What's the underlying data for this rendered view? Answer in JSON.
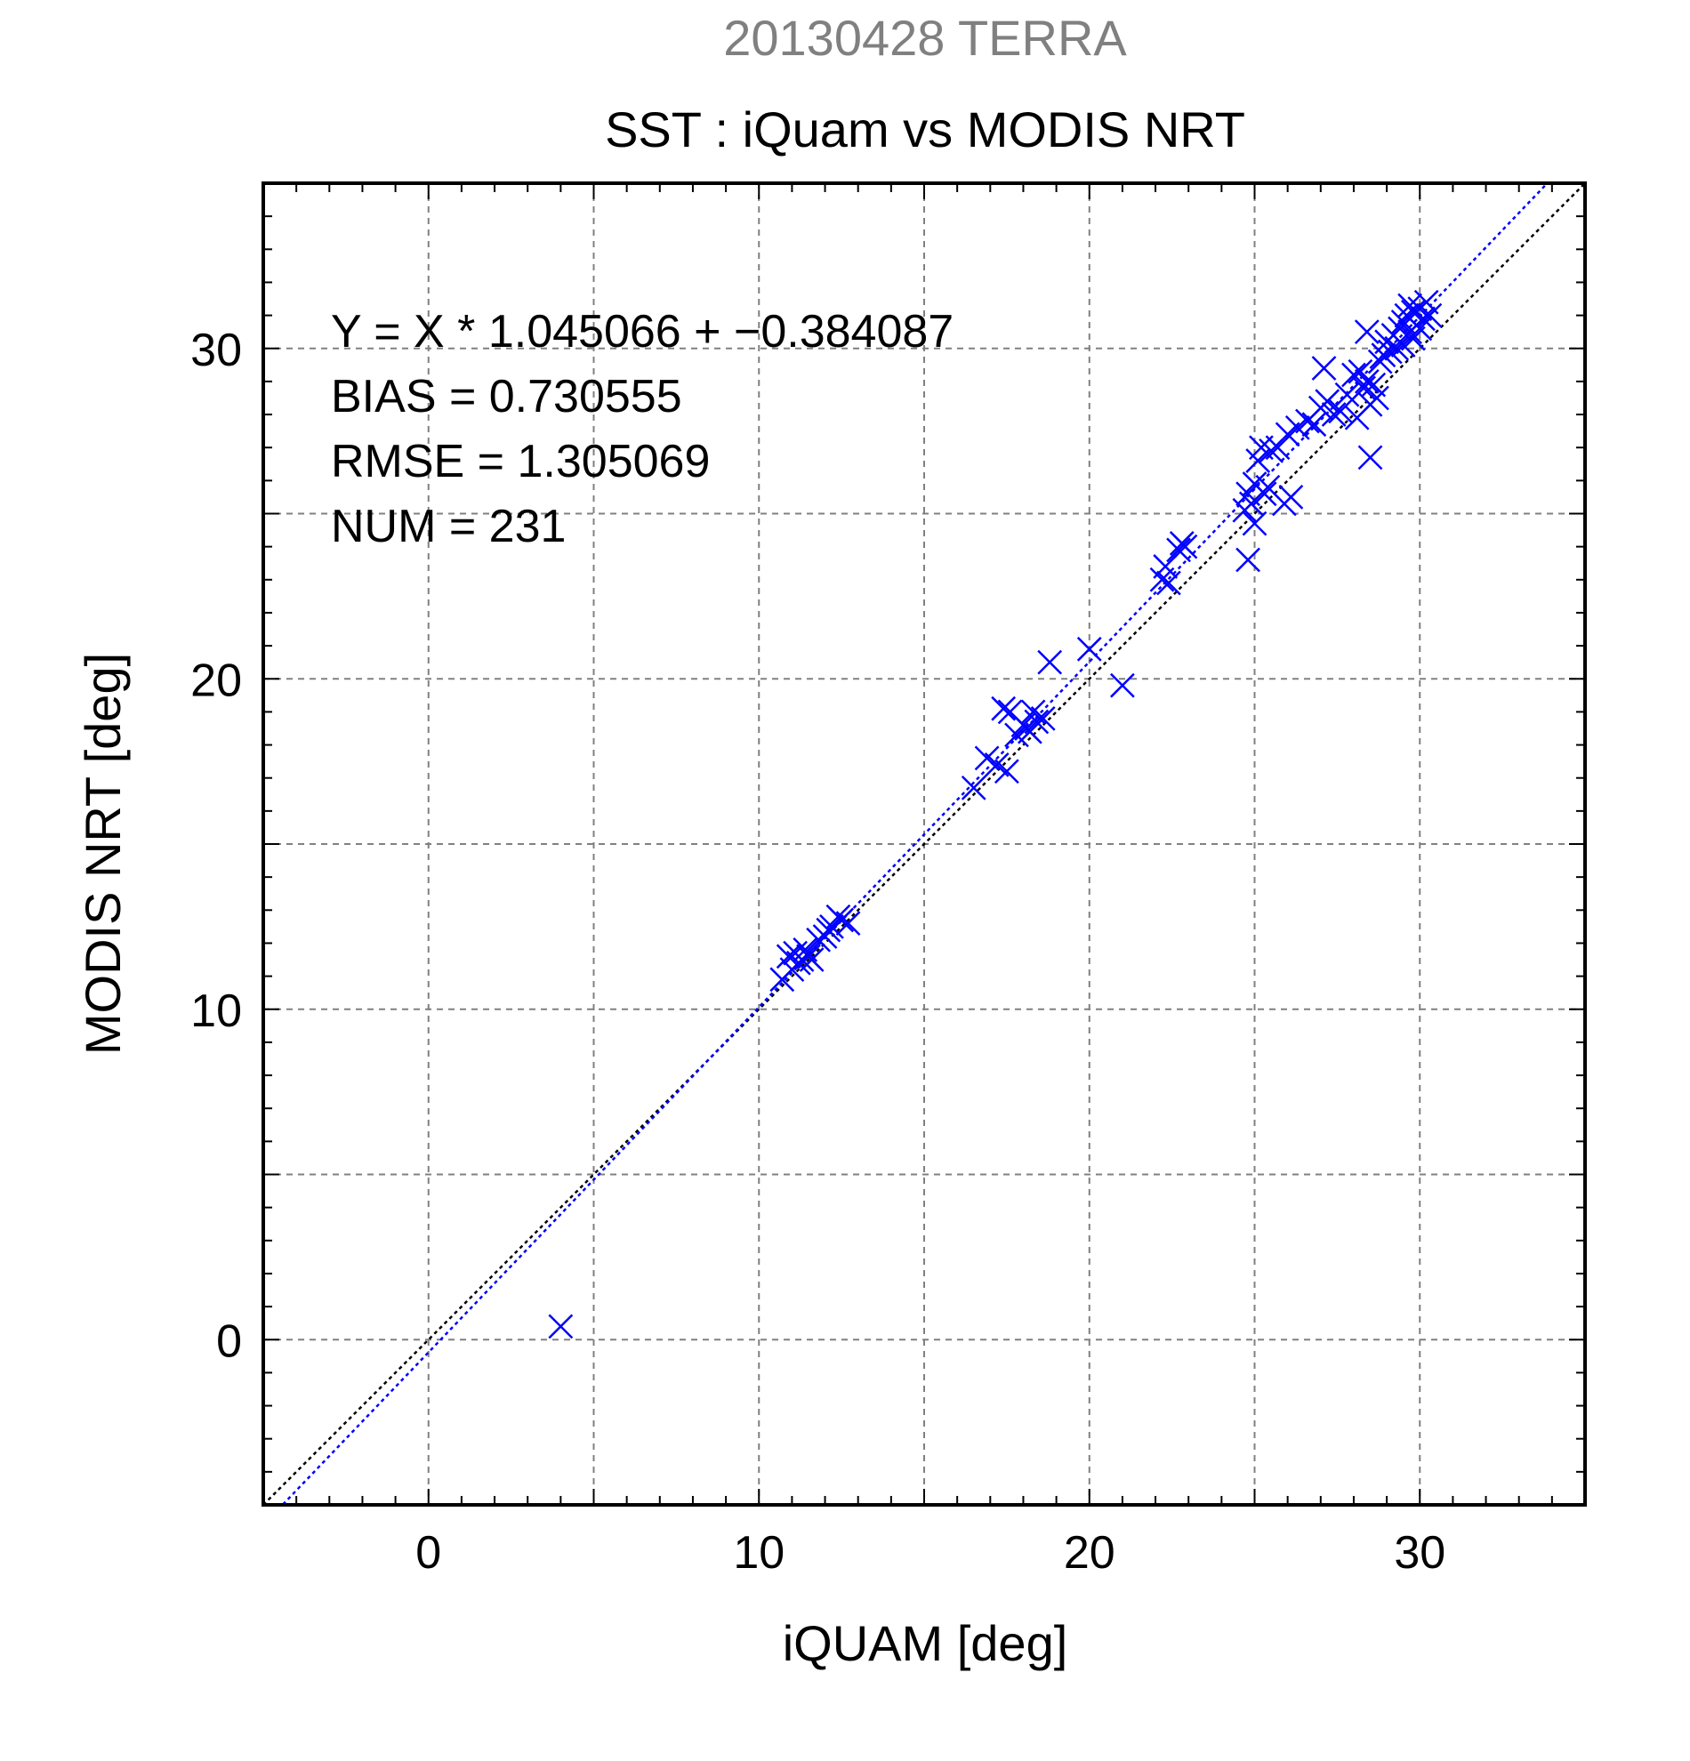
{
  "chart_data": {
    "type": "scatter",
    "title": "20130428 TERRA",
    "subtitle": "SST : iQuam vs MODIS NRT",
    "xlabel": "iQUAM [deg]",
    "ylabel": "MODIS NRT [deg]",
    "xlim": [
      -5,
      35
    ],
    "ylim": [
      -5,
      35
    ],
    "xticks": [
      0,
      10,
      20,
      30
    ],
    "yticks": [
      0,
      10,
      20,
      30
    ],
    "tick_labels": {
      "x": [
        "0",
        "10",
        "20",
        "30"
      ],
      "y": [
        "0",
        "10",
        "20",
        "30"
      ]
    },
    "grid": true,
    "annotations": [
      "Y = X * 1.045066 + −0.384087",
      "BIAS = 0.730555",
      "RMSE = 1.305069",
      "NUM = 231"
    ],
    "regression": {
      "slope": 1.045066,
      "intercept": -0.384087
    },
    "colors": {
      "points": "#0000ff",
      "fit_line": "#0000ff",
      "identity_line": "#000000",
      "title": "#808080",
      "grid": "#808080"
    },
    "points": [
      [
        4.0,
        0.4
      ],
      [
        10.7,
        10.9
      ],
      [
        10.9,
        11.6
      ],
      [
        11.0,
        11.2
      ],
      [
        11.1,
        11.7
      ],
      [
        11.2,
        11.4
      ],
      [
        11.3,
        11.5
      ],
      [
        11.4,
        11.8
      ],
      [
        11.5,
        11.6
      ],
      [
        11.6,
        11.5
      ],
      [
        11.8,
        12.1
      ],
      [
        12.0,
        12.2
      ],
      [
        12.1,
        12.4
      ],
      [
        12.2,
        12.5
      ],
      [
        12.4,
        12.8
      ],
      [
        12.5,
        12.7
      ],
      [
        12.7,
        12.6
      ],
      [
        16.5,
        16.7
      ],
      [
        16.9,
        17.6
      ],
      [
        17.2,
        17.4
      ],
      [
        17.4,
        19.1
      ],
      [
        17.5,
        17.2
      ],
      [
        17.6,
        19.0
      ],
      [
        17.8,
        18.3
      ],
      [
        18.0,
        18.6
      ],
      [
        18.1,
        18.5
      ],
      [
        18.2,
        18.4
      ],
      [
        18.3,
        19.0
      ],
      [
        18.4,
        18.7
      ],
      [
        18.6,
        18.8
      ],
      [
        18.8,
        20.5
      ],
      [
        20.0,
        20.9
      ],
      [
        21.0,
        19.8
      ],
      [
        22.2,
        23.0
      ],
      [
        22.3,
        23.4
      ],
      [
        22.4,
        22.9
      ],
      [
        22.7,
        23.9
      ],
      [
        22.8,
        24.1
      ],
      [
        22.9,
        24.0
      ],
      [
        24.7,
        25.1
      ],
      [
        24.8,
        25.6
      ],
      [
        24.8,
        23.6
      ],
      [
        24.9,
        25.3
      ],
      [
        25.0,
        25.9
      ],
      [
        25.0,
        24.7
      ],
      [
        25.1,
        26.6
      ],
      [
        25.2,
        27.0
      ],
      [
        25.3,
        25.6
      ],
      [
        25.4,
        25.8
      ],
      [
        25.5,
        26.9
      ],
      [
        25.7,
        27.0
      ],
      [
        25.9,
        25.3
      ],
      [
        26.0,
        27.4
      ],
      [
        26.1,
        25.5
      ],
      [
        26.3,
        27.6
      ],
      [
        26.6,
        27.8
      ],
      [
        26.8,
        27.7
      ],
      [
        27.0,
        28.2
      ],
      [
        27.2,
        28.4
      ],
      [
        27.4,
        28.0
      ],
      [
        27.1,
        29.4
      ],
      [
        27.6,
        28.1
      ],
      [
        27.8,
        28.6
      ],
      [
        28.0,
        29.2
      ],
      [
        28.1,
        27.9
      ],
      [
        28.2,
        29.3
      ],
      [
        28.3,
        28.8
      ],
      [
        28.4,
        29.0
      ],
      [
        28.4,
        30.5
      ],
      [
        28.5,
        28.3
      ],
      [
        28.5,
        26.7
      ],
      [
        28.6,
        28.9
      ],
      [
        28.7,
        28.5
      ],
      [
        28.8,
        29.6
      ],
      [
        28.9,
        29.8
      ],
      [
        29.0,
        30.2
      ],
      [
        29.1,
        29.9
      ],
      [
        29.2,
        30.4
      ],
      [
        29.3,
        30.0
      ],
      [
        29.4,
        30.6
      ],
      [
        29.5,
        30.8
      ],
      [
        29.6,
        31.0
      ],
      [
        29.7,
        30.5
      ],
      [
        29.7,
        31.3
      ],
      [
        29.8,
        31.1
      ],
      [
        29.9,
        30.7
      ],
      [
        30.0,
        31.2
      ],
      [
        30.1,
        30.9
      ],
      [
        30.2,
        31.4
      ],
      [
        30.3,
        31.0
      ],
      [
        29.5,
        30.1
      ],
      [
        29.8,
        30.3
      ],
      [
        30.0,
        30.6
      ]
    ]
  }
}
